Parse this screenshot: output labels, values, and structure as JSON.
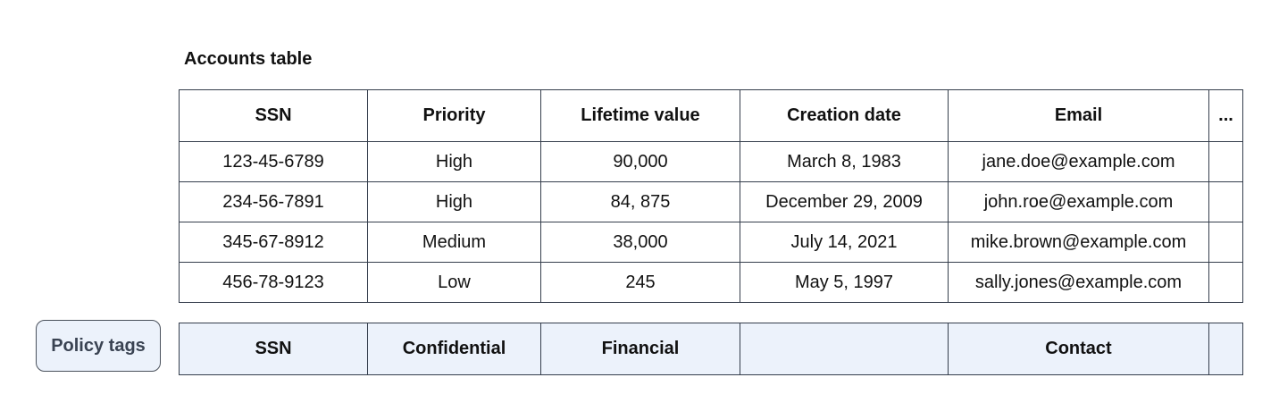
{
  "accounts_table": {
    "title": "Accounts table",
    "columns": [
      "SSN",
      "Priority",
      "Lifetime value",
      "Creation date",
      "Email",
      "..."
    ],
    "column_keys": [
      "ssn",
      "priority",
      "lifetime-value",
      "creation-date",
      "email",
      "more"
    ],
    "rows": [
      [
        "123-45-6789",
        "High",
        "90,000",
        "March 8, 1983",
        "jane.doe@example.com",
        ""
      ],
      [
        "234-56-7891",
        "High",
        "84, 875",
        "December 29, 2009",
        "john.roe@example.com",
        ""
      ],
      [
        "345-67-8912",
        "Medium",
        "38,000",
        "July 14, 2021",
        "mike.brown@example.com",
        ""
      ],
      [
        "456-78-9123",
        "Low",
        "245",
        "May 5, 1997",
        "sally.jones@example.com",
        ""
      ]
    ]
  },
  "policy_tags": {
    "label": "Policy tags",
    "tags": [
      "SSN",
      "Confidential",
      "Financial",
      "",
      "Contact",
      ""
    ]
  },
  "colors": {
    "table_border": "#353e4c",
    "policy_tag_background": "#ecf2fb",
    "policy_label_text": "#3a4352",
    "text": "#111111",
    "background": "#ffffff"
  }
}
